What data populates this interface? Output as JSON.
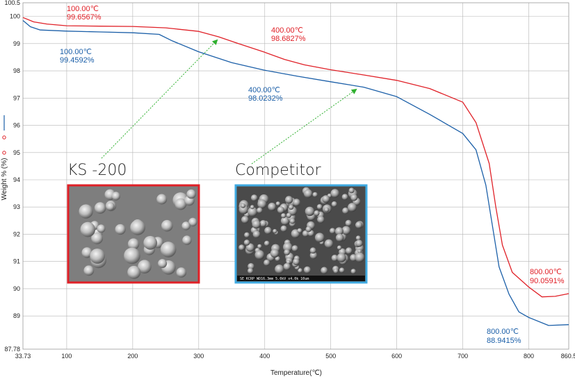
{
  "chart_data": {
    "type": "line",
    "xlabel": "Temperature(℃)",
    "ylabel": "Weight % (%)",
    "xlim": [
      33.73,
      860.5
    ],
    "ylim": [
      87.78,
      100.5
    ],
    "x_ticks": [
      "33.73",
      "100",
      "200",
      "300",
      "400",
      "500",
      "600",
      "700",
      "800",
      "860.5"
    ],
    "y_ticks": [
      "87.78",
      "89",
      "90",
      "91",
      "92",
      "93",
      "94",
      "95",
      "96",
      "97",
      "98",
      "99",
      "100",
      "100.5"
    ],
    "grid": true,
    "series": [
      {
        "color": "#e02027",
        "points": [
          [
            33.73,
            99.96
          ],
          [
            50,
            99.8
          ],
          [
            70,
            99.72
          ],
          [
            100,
            99.6567
          ],
          [
            150,
            99.64
          ],
          [
            200,
            99.63
          ],
          [
            250,
            99.58
          ],
          [
            300,
            99.45
          ],
          [
            330,
            99.25
          ],
          [
            360,
            99.0
          ],
          [
            400,
            98.6827
          ],
          [
            430,
            98.42
          ],
          [
            460,
            98.22
          ],
          [
            500,
            98.04
          ],
          [
            550,
            97.85
          ],
          [
            600,
            97.65
          ],
          [
            650,
            97.35
          ],
          [
            700,
            96.85
          ],
          [
            720,
            96.1
          ],
          [
            740,
            94.6
          ],
          [
            750,
            93.0
          ],
          [
            760,
            91.6
          ],
          [
            775,
            90.6
          ],
          [
            800,
            90.0591
          ],
          [
            820,
            89.7
          ],
          [
            840,
            89.72
          ],
          [
            860.5,
            89.82
          ]
        ]
      },
      {
        "color": "#1b5fa8",
        "points": [
          [
            33.73,
            99.85
          ],
          [
            45,
            99.62
          ],
          [
            60,
            99.5
          ],
          [
            100,
            99.4592
          ],
          [
            150,
            99.43
          ],
          [
            200,
            99.4
          ],
          [
            240,
            99.34
          ],
          [
            260,
            99.1
          ],
          [
            300,
            98.7
          ],
          [
            350,
            98.3
          ],
          [
            400,
            98.0232
          ],
          [
            450,
            97.8
          ],
          [
            500,
            97.6
          ],
          [
            550,
            97.4
          ],
          [
            600,
            97.05
          ],
          [
            650,
            96.4
          ],
          [
            700,
            95.7
          ],
          [
            720,
            95.1
          ],
          [
            735,
            93.8
          ],
          [
            745,
            92.3
          ],
          [
            755,
            90.8
          ],
          [
            770,
            89.8
          ],
          [
            785,
            89.15
          ],
          [
            800,
            88.9415
          ],
          [
            830,
            88.65
          ],
          [
            860.5,
            88.68
          ]
        ]
      }
    ],
    "annotations": [
      {
        "text": "100.00℃",
        "value": "99.6567%",
        "color": "#e02027"
      },
      {
        "text": "400.00℃",
        "value": "98.6827%",
        "color": "#e02027"
      },
      {
        "text": "800.00℃",
        "value": "90.0591%",
        "color": "#e02027"
      },
      {
        "text": "100.00℃",
        "value": "99.4592%",
        "color": "#1b5fa8"
      },
      {
        "text": "400.00℃",
        "value": "98.0232%",
        "color": "#1b5fa8"
      },
      {
        "text": "800.00℃",
        "value": "88.9415%",
        "color": "#1b5fa8"
      }
    ]
  },
  "insets": {
    "left_title": "KS -200",
    "left_border": "#e02027",
    "right_title": "Competitor",
    "right_border": "#3fa9e0",
    "right_scale_text": "SE          KCRP  WD16.3mm  5.0kV x4.0k  10um",
    "arrow_color": "#2fb02f"
  },
  "legend_markers": [
    "—",
    "o",
    "o"
  ]
}
